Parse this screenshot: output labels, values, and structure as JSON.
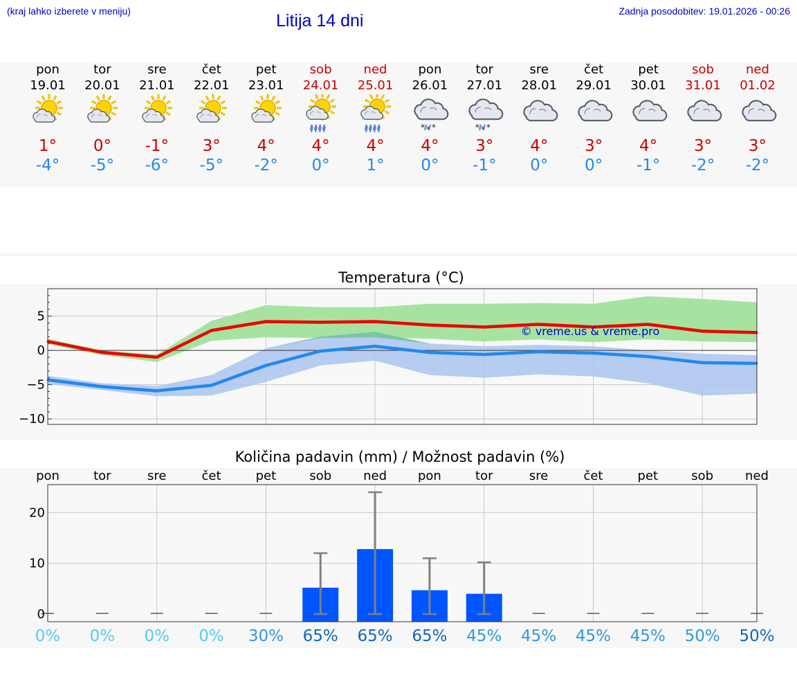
{
  "header": {
    "hint": "(kraj lahko izberete v meniju)",
    "title": "Litija 14 dni",
    "updated": "Zadnja posodobitev: 19.01.2026 - 00:26"
  },
  "forecast": {
    "days": [
      {
        "name": "pon",
        "date": "19.01",
        "weekend": false,
        "icon": "sun-cloud-icon",
        "max": "1°",
        "min": "-4°"
      },
      {
        "name": "tor",
        "date": "20.01",
        "weekend": false,
        "icon": "sun-cloud-icon",
        "max": "0°",
        "min": "-5°"
      },
      {
        "name": "sre",
        "date": "21.01",
        "weekend": false,
        "icon": "sun-cloud-icon",
        "max": "-1°",
        "min": "-6°"
      },
      {
        "name": "čet",
        "date": "22.01",
        "weekend": false,
        "icon": "sun-cloud-icon",
        "max": "3°",
        "min": "-5°"
      },
      {
        "name": "pet",
        "date": "23.01",
        "weekend": false,
        "icon": "sun-cloud-icon",
        "max": "4°",
        "min": "-2°"
      },
      {
        "name": "sob",
        "date": "24.01",
        "weekend": true,
        "icon": "sun-cloud-rain-icon",
        "max": "4°",
        "min": "0°"
      },
      {
        "name": "ned",
        "date": "25.01",
        "weekend": true,
        "icon": "sun-cloud-rain-icon",
        "max": "4°",
        "min": "1°"
      },
      {
        "name": "pon",
        "date": "26.01",
        "weekend": false,
        "icon": "cloud-snow-icon",
        "max": "4°",
        "min": "0°"
      },
      {
        "name": "tor",
        "date": "27.01",
        "weekend": false,
        "icon": "cloud-snow-icon",
        "max": "3°",
        "min": "-1°"
      },
      {
        "name": "sre",
        "date": "28.01",
        "weekend": false,
        "icon": "cloud-icon",
        "max": "4°",
        "min": "0°"
      },
      {
        "name": "čet",
        "date": "29.01",
        "weekend": false,
        "icon": "cloud-icon",
        "max": "3°",
        "min": "0°"
      },
      {
        "name": "pet",
        "date": "30.01",
        "weekend": false,
        "icon": "cloud-icon",
        "max": "4°",
        "min": "-1°"
      },
      {
        "name": "sob",
        "date": "31.01",
        "weekend": true,
        "icon": "cloud-icon",
        "max": "3°",
        "min": "-2°"
      },
      {
        "name": "ned",
        "date": "01.02",
        "weekend": true,
        "icon": "cloud-icon",
        "max": "3°",
        "min": "-2°"
      }
    ]
  },
  "colors": {
    "max": "#cc0000",
    "min": "#2288ee",
    "title": "#0000cc",
    "max_line": "#ee0000",
    "min_line": "#2288ee",
    "max_band": "#a6e3a1",
    "min_band": "#aac4f0",
    "overlap_band": "#7cc4a8",
    "bar": "#0055ff",
    "whisker": "#808080"
  },
  "chart_data": [
    {
      "type": "line",
      "title": "Temperatura (°C)",
      "watermark": "© vreme.us & vreme.pro",
      "x": [
        0,
        1,
        2,
        3,
        4,
        5,
        6,
        7,
        8,
        9,
        10,
        11,
        12,
        13
      ],
      "ylim": [
        -10.8,
        9.0
      ],
      "yticks": [
        5,
        0,
        -5,
        -10
      ],
      "ytick_labels": [
        "5",
        "0",
        "−5",
        "−10"
      ],
      "series": [
        {
          "name": "max",
          "values": [
            1.3,
            -0.3,
            -1.0,
            2.9,
            4.2,
            4.1,
            4.2,
            3.7,
            3.4,
            3.8,
            3.4,
            3.8,
            2.8,
            2.6
          ]
        },
        {
          "name": "min",
          "values": [
            -4.3,
            -5.3,
            -5.9,
            -5.1,
            -2.2,
            -0.1,
            0.6,
            -0.3,
            -0.6,
            -0.2,
            -0.4,
            -0.9,
            -1.8,
            -1.9
          ]
        }
      ],
      "bands": [
        {
          "name": "max-range",
          "upper": [
            1.7,
            0.0,
            -0.6,
            4.3,
            6.6,
            6.3,
            6.3,
            6.8,
            6.8,
            6.9,
            6.8,
            7.9,
            7.5,
            7.0
          ],
          "lower": [
            0.9,
            -0.7,
            -1.7,
            1.4,
            1.9,
            1.8,
            1.9,
            1.7,
            1.3,
            1.6,
            1.2,
            1.6,
            1.3,
            1.2
          ]
        },
        {
          "name": "min-range",
          "upper": [
            -3.7,
            -4.8,
            -5.2,
            -3.6,
            0.3,
            2.0,
            2.7,
            1.0,
            0.6,
            0.8,
            0.6,
            0.0,
            -0.5,
            -0.7
          ],
          "lower": [
            -4.9,
            -5.8,
            -6.7,
            -6.6,
            -4.6,
            -2.2,
            -1.5,
            -3.6,
            -4.0,
            -3.5,
            -3.8,
            -4.8,
            -6.6,
            -6.3
          ]
        }
      ]
    },
    {
      "type": "bar",
      "title": "Količina padavin (mm) / Možnost padavin (%)",
      "categories": [
        "pon",
        "tor",
        "sre",
        "čet",
        "pet",
        "sob",
        "ned",
        "pon",
        "tor",
        "sre",
        "čet",
        "pet",
        "sob",
        "ned"
      ],
      "values": [
        0,
        0,
        0,
        0,
        0,
        5.2,
        12.8,
        4.7,
        4.0,
        0,
        0,
        0,
        0,
        0
      ],
      "error_low": [
        0,
        0,
        0,
        0,
        0,
        0,
        0,
        0,
        0,
        0,
        0,
        0,
        0,
        0
      ],
      "error_high": [
        0,
        0,
        0,
        0,
        0,
        12.0,
        24.0,
        11.0,
        10.2,
        0,
        0,
        0,
        0,
        0
      ],
      "probabilities": [
        "0%",
        "0%",
        "0%",
        "0%",
        "30%",
        "65%",
        "65%",
        "65%",
        "45%",
        "45%",
        "45%",
        "45%",
        "50%",
        "50%"
      ],
      "prob_colors": [
        "#55ccee",
        "#55ccee",
        "#55ccee",
        "#55ccee",
        "#3399dd",
        "#1166bb",
        "#1166bb",
        "#1166bb",
        "#3399dd",
        "#3399dd",
        "#3399dd",
        "#3399dd",
        "#3399dd",
        "#1166bb"
      ],
      "ylim": [
        -1.5,
        25.5
      ],
      "yticks": [
        20,
        10,
        0
      ],
      "ytick_labels": [
        "20",
        "10",
        "0"
      ]
    }
  ]
}
